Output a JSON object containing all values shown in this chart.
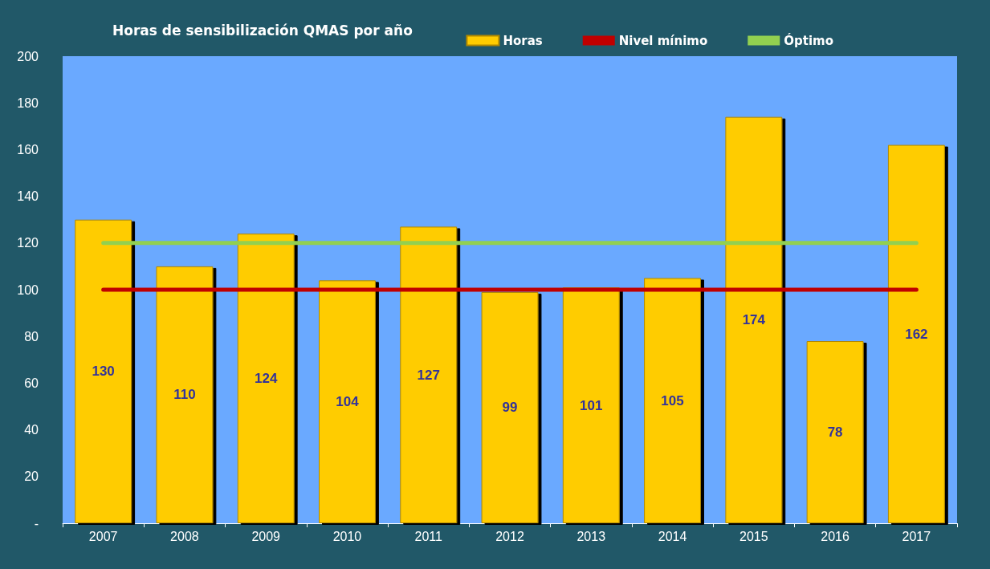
{
  "chart_data": {
    "type": "bar",
    "title": "Horas de sensibilización QMAS por año",
    "categories": [
      "2007",
      "2008",
      "2009",
      "2010",
      "2011",
      "2012",
      "2013",
      "2014",
      "2015",
      "2016",
      "2017"
    ],
    "series": [
      {
        "name": "Horas",
        "color": "#ffcc00",
        "values": [
          130,
          110,
          124,
          104,
          127,
          99,
          101,
          105,
          174,
          78,
          162
        ],
        "value_labels": [
          "130",
          "110",
          "124",
          "104",
          "127",
          "99",
          "101",
          "105",
          "174",
          "78",
          "162"
        ]
      },
      {
        "name": "Nivel mínimo",
        "type": "line",
        "color": "#c00000",
        "values": [
          100,
          100,
          100,
          100,
          100,
          100,
          100,
          100,
          100,
          100,
          100
        ]
      },
      {
        "name": "Óptimo",
        "type": "line",
        "color": "#92d050",
        "values": [
          120,
          120,
          120,
          120,
          120,
          120,
          120,
          120,
          120,
          120,
          120
        ]
      }
    ],
    "ylim": [
      0,
      200
    ],
    "yticks": [
      {
        "value": 0,
        "label": "-"
      },
      20,
      40,
      60,
      80,
      100,
      120,
      140,
      160,
      180,
      200
    ],
    "grid": false,
    "legend": "top right",
    "marker": "none"
  }
}
